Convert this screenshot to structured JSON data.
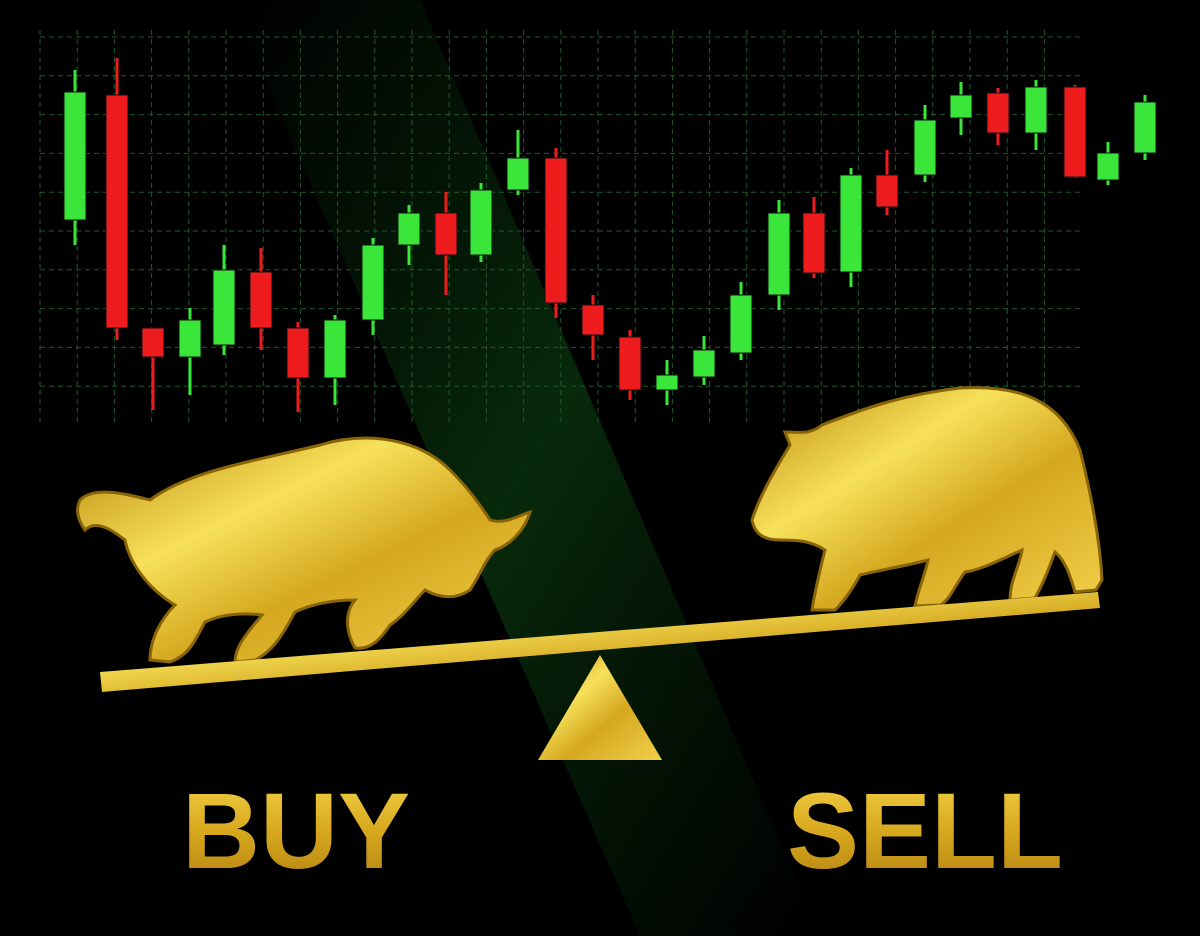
{
  "labels": {
    "buy": "BUY",
    "sell": "SELL"
  }
}
